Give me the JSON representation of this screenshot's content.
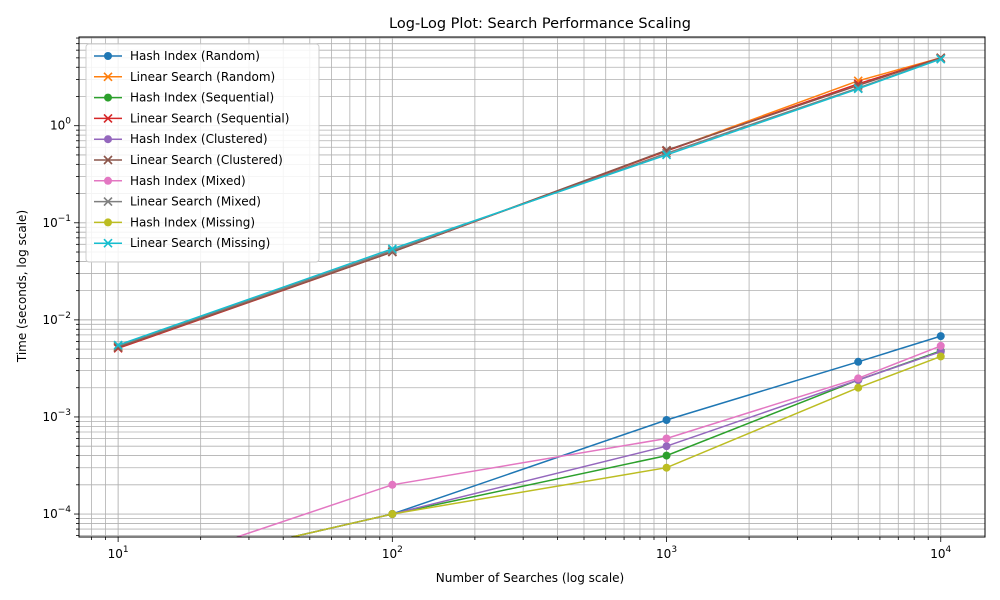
{
  "chart_data": {
    "type": "line",
    "title": "Log-Log Plot: Search Performance Scaling",
    "xlabel": "Number of Searches (log scale)",
    "ylabel": "Time (seconds, log scale)",
    "xscale": "log",
    "yscale": "log",
    "xlim": [
      7.2,
      14500
    ],
    "ylim": [
      5.8e-05,
      8.2
    ],
    "x_ticks": [
      {
        "value": 10,
        "base": "10",
        "exp": "1"
      },
      {
        "value": 100,
        "base": "10",
        "exp": "2"
      },
      {
        "value": 1000,
        "base": "10",
        "exp": "3"
      },
      {
        "value": 10000,
        "base": "10",
        "exp": "4"
      }
    ],
    "y_ticks": [
      {
        "value": 0.0001,
        "base": "10",
        "exp": "−4"
      },
      {
        "value": 0.001,
        "base": "10",
        "exp": "−3"
      },
      {
        "value": 0.01,
        "base": "10",
        "exp": "−2"
      },
      {
        "value": 0.1,
        "base": "10",
        "exp": "−1"
      },
      {
        "value": 1,
        "base": "10",
        "exp": "0"
      }
    ],
    "grid": "major and minor",
    "legend_position": "upper-left",
    "series": [
      {
        "name": "Hash Index (Random)",
        "color": "#1f77b4",
        "marker": "circle",
        "x": [
          10,
          100,
          1000,
          5000,
          10000
        ],
        "y": [
          0,
          0.0001,
          0.00093,
          0.0037,
          0.0068
        ]
      },
      {
        "name": "Linear Search (Random)",
        "color": "#ff7f0e",
        "marker": "x",
        "x": [
          10,
          100,
          1000,
          5000,
          10000
        ],
        "y": [
          0.0053,
          0.0502,
          0.55,
          2.9,
          5.0
        ]
      },
      {
        "name": "Hash Index (Sequential)",
        "color": "#2ca02c",
        "marker": "circle",
        "x": [
          10,
          100,
          1000,
          5000,
          10000
        ],
        "y": [
          0,
          0.0001,
          0.0004,
          0.0024,
          0.0048
        ]
      },
      {
        "name": "Linear Search (Sequential)",
        "color": "#d62728",
        "marker": "x",
        "x": [
          10,
          100,
          1000,
          5000,
          10000
        ],
        "y": [
          0.0051,
          0.0501,
          0.55,
          2.7,
          5.0
        ]
      },
      {
        "name": "Hash Index (Clustered)",
        "color": "#9467bd",
        "marker": "circle",
        "x": [
          10,
          100,
          1000,
          5000,
          10000
        ],
        "y": [
          0,
          0.0001,
          0.0005,
          0.0024,
          0.0047
        ]
      },
      {
        "name": "Linear Search (Clustered)",
        "color": "#8c564b",
        "marker": "x",
        "x": [
          10,
          100,
          1000,
          5000,
          10000
        ],
        "y": [
          0.0052,
          0.05,
          0.56,
          2.6,
          5.0
        ]
      },
      {
        "name": "Hash Index (Mixed)",
        "color": "#e377c2",
        "marker": "circle",
        "x": [
          10,
          100,
          1000,
          5000,
          10000
        ],
        "y": [
          0,
          0.0002,
          0.0006,
          0.0025,
          0.0054
        ]
      },
      {
        "name": "Linear Search (Mixed)",
        "color": "#7f7f7f",
        "marker": "x",
        "x": [
          10,
          100,
          1000,
          5000,
          10000
        ],
        "y": [
          0.0054,
          0.052,
          0.52,
          2.45,
          4.9
        ]
      },
      {
        "name": "Hash Index (Missing)",
        "color": "#bcbd22",
        "marker": "circle",
        "x": [
          10,
          100,
          1000,
          5000,
          10000
        ],
        "y": [
          0,
          0.0001,
          0.0003,
          0.002,
          0.0042
        ]
      },
      {
        "name": "Linear Search (Missing)",
        "color": "#17becf",
        "marker": "x",
        "x": [
          10,
          100,
          1000,
          5000,
          10000
        ],
        "y": [
          0.0055,
          0.054,
          0.5,
          2.4,
          4.85
        ]
      }
    ]
  }
}
